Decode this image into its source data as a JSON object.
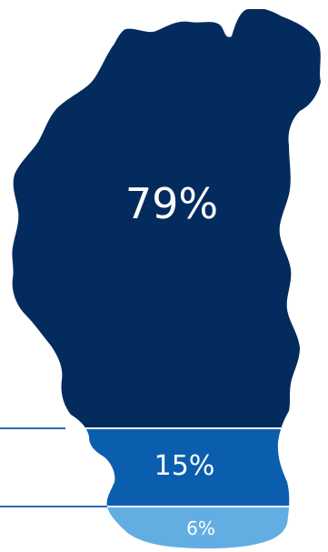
{
  "chart_data": {
    "type": "stacked-area-shape",
    "values": [
      79,
      15,
      6
    ],
    "labels": [
      "79%",
      "15%",
      "6%"
    ],
    "colors": [
      "#042b5e",
      "#0b5eae",
      "#62aee2"
    ],
    "grid": false,
    "legend": "none"
  }
}
